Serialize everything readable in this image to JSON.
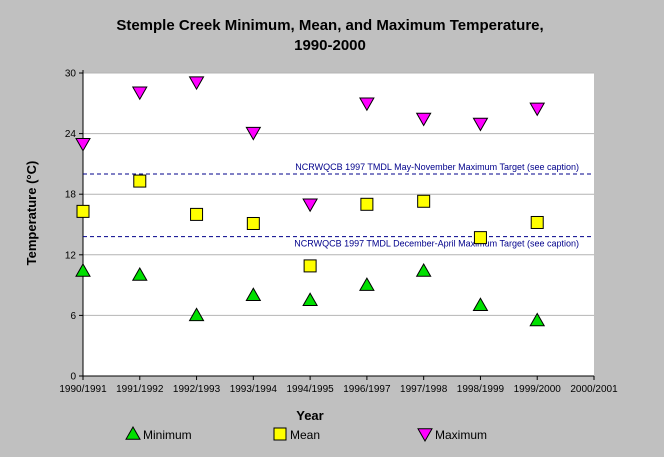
{
  "chart_data": {
    "type": "scatter",
    "title_line1": "Stemple Creek Minimum, Mean, and Maximum Temperature,",
    "title_line2": "1990-2000",
    "xlabel": "Year",
    "ylabel": "Temperature (°C)",
    "categories": [
      "1990/1991",
      "1991/1992",
      "1992/1993",
      "1993/1994",
      "1994/1995",
      "1996/1997",
      "1997/1998",
      "1998/1999",
      "1999/2000",
      "2000/2001"
    ],
    "ylim": [
      0,
      30
    ],
    "yticks": [
      "0",
      "6",
      "12",
      "18",
      "24",
      "30"
    ],
    "grid": true,
    "legend_position": "bottom",
    "series": [
      {
        "name": "Minimum",
        "marker": "triangle-up",
        "color": "#00e000",
        "values": [
          10.4,
          10.0,
          6.0,
          8.0,
          7.5,
          9.0,
          10.4,
          7.0,
          5.5,
          null
        ]
      },
      {
        "name": "Mean",
        "marker": "square",
        "color": "#ffff00",
        "values": [
          16.3,
          19.3,
          16.0,
          15.1,
          10.9,
          17.0,
          17.3,
          13.7,
          15.2,
          null
        ]
      },
      {
        "name": "Maximum",
        "marker": "triangle-down",
        "color": "#ff00ff",
        "values": [
          23.0,
          28.1,
          29.1,
          24.1,
          17.0,
          27.0,
          25.5,
          25.0,
          26.5,
          null
        ]
      }
    ],
    "reference_lines": [
      {
        "label": "NCRWQCB 1997 TMDL May-November Maximum Target (see caption)",
        "value": 20.0,
        "color": "#00008b"
      },
      {
        "label": "NCRWQCB 1997 TMDL December-April Maximum Target (see caption)",
        "value": 13.8,
        "color": "#00008b"
      }
    ]
  }
}
